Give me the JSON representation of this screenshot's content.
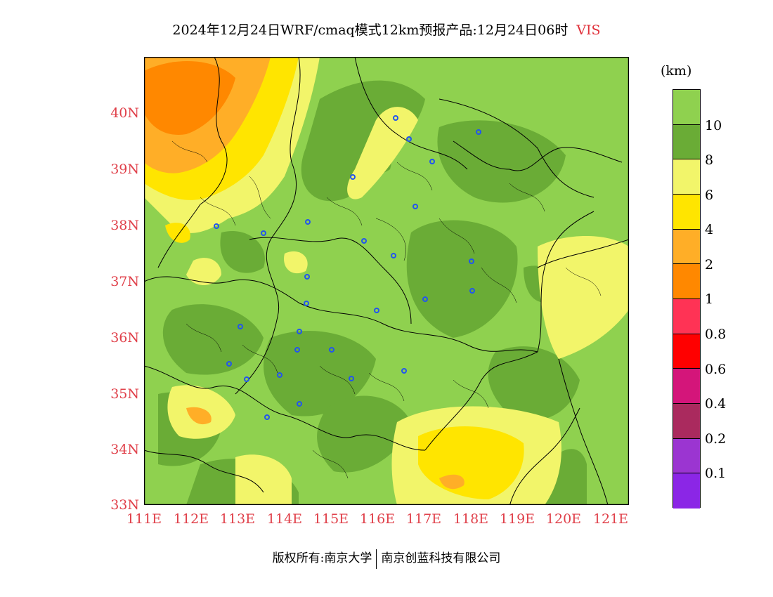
{
  "title": {
    "main": "2024年12月24日WRF/cmaq模式12km预报产品:12月24日06时",
    "variable": "VIS"
  },
  "axes": {
    "y_labels": [
      "40N",
      "39N",
      "38N",
      "37N",
      "36N",
      "35N",
      "34N",
      "33N"
    ],
    "x_labels": [
      "111E",
      "112E",
      "113E",
      "114E",
      "115E",
      "116E",
      "117E",
      "118E",
      "119E",
      "120E",
      "121E"
    ]
  },
  "colorbar": {
    "unit": "(km)",
    "labels": [
      "10",
      "8",
      "6",
      "4",
      "2",
      "1",
      "0.8",
      "0.6",
      "0.4",
      "0.2",
      "0.1"
    ],
    "colors": [
      "#8fd14f",
      "#6aac36",
      "#f2f56a",
      "#ffe500",
      "#ffae27",
      "#ff8800",
      "#ff3355",
      "#ff0000",
      "#d4157a",
      "#aa2a5e",
      "#9b35d1",
      "#8b26e6"
    ]
  },
  "map": {
    "background_color": "#8fd14f",
    "station_marker_color": "#2255ee",
    "boundary_color": "#000000"
  },
  "footer": {
    "left": "版权所有:南京大学",
    "right": "南京创蓝科技有限公司"
  }
}
